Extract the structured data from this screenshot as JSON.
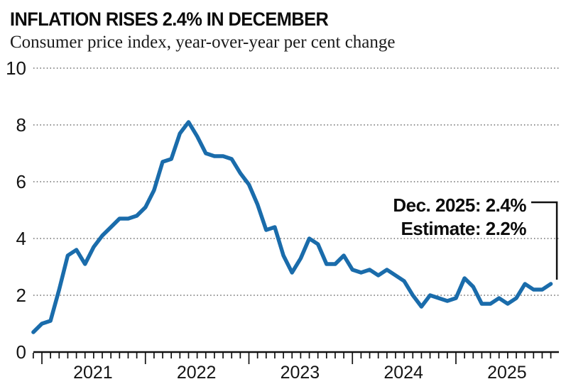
{
  "header": {
    "title": "INFLATION RISES 2.4% IN DECEMBER",
    "subtitle": "Consumer price index, year-over-year per cent change"
  },
  "annotation": {
    "line1": "Dec. 2025: 2.4%",
    "line2": "Estimate: 2.2%"
  },
  "colors": {
    "line": "#1a6cab",
    "axis": "#111111",
    "gridline": "#8f8f8f",
    "text": "#0c0c0c"
  },
  "chart_data": {
    "type": "line",
    "title": "INFLATION RISES 2.4% IN DECEMBER",
    "subtitle": "Consumer price index, year-over-year per cent change",
    "ylabel": "",
    "xlabel": "",
    "ylim": [
      0,
      10
    ],
    "y_ticks": [
      0,
      2,
      4,
      6,
      8,
      10
    ],
    "grid": "horizontal-dotted",
    "x_tick_labels": [
      "2021",
      "2022",
      "2023",
      "2024",
      "2025"
    ],
    "x_start": "2020-12",
    "x_end": "2025-12",
    "annotation": {
      "label": "Dec. 2025: 2.4%",
      "sublabel": "Estimate: 2.2%",
      "points_to": "2025-12"
    },
    "series": [
      {
        "name": "Consumer price index, year-over-year per cent change",
        "color": "#1a6cab",
        "x": [
          "2020-12",
          "2021-01",
          "2021-02",
          "2021-03",
          "2021-04",
          "2021-05",
          "2021-06",
          "2021-07",
          "2021-08",
          "2021-09",
          "2021-10",
          "2021-11",
          "2021-12",
          "2022-01",
          "2022-02",
          "2022-03",
          "2022-04",
          "2022-05",
          "2022-06",
          "2022-07",
          "2022-08",
          "2022-09",
          "2022-10",
          "2022-11",
          "2022-12",
          "2023-01",
          "2023-02",
          "2023-03",
          "2023-04",
          "2023-05",
          "2023-06",
          "2023-07",
          "2023-08",
          "2023-09",
          "2023-10",
          "2023-11",
          "2023-12",
          "2024-01",
          "2024-02",
          "2024-03",
          "2024-04",
          "2024-05",
          "2024-06",
          "2024-07",
          "2024-08",
          "2024-09",
          "2024-10",
          "2024-11",
          "2024-12",
          "2025-01",
          "2025-02",
          "2025-03",
          "2025-04",
          "2025-05",
          "2025-06",
          "2025-07",
          "2025-08",
          "2025-09",
          "2025-10",
          "2025-11",
          "2025-12"
        ],
        "values": [
          0.7,
          1.0,
          1.1,
          2.2,
          3.4,
          3.6,
          3.1,
          3.7,
          4.1,
          4.4,
          4.7,
          4.7,
          4.8,
          5.1,
          5.7,
          6.7,
          6.8,
          7.7,
          8.1,
          7.6,
          7.0,
          6.9,
          6.9,
          6.8,
          6.3,
          5.9,
          5.2,
          4.3,
          4.4,
          3.4,
          2.8,
          3.3,
          4.0,
          3.8,
          3.1,
          3.1,
          3.4,
          2.9,
          2.8,
          2.9,
          2.7,
          2.9,
          2.7,
          2.5,
          2.0,
          1.6,
          2.0,
          1.9,
          1.8,
          1.9,
          2.6,
          2.3,
          1.7,
          1.7,
          1.9,
          1.7,
          1.9,
          2.4,
          2.2,
          2.2,
          2.4
        ]
      }
    ]
  }
}
